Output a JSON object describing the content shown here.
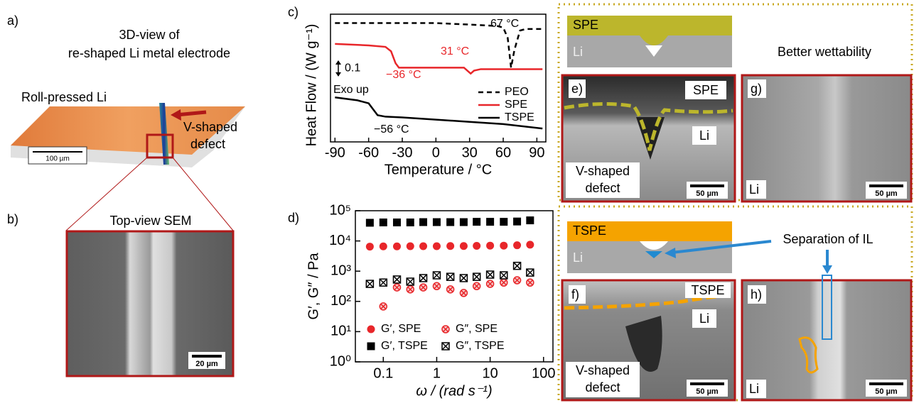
{
  "panel_a": {
    "label": "a)",
    "title_lines": [
      "3D-view of",
      "re-shaped Li metal electrode"
    ],
    "roll_label": "Roll-pressed Li",
    "defect_lines": [
      "V-shaped",
      "defect"
    ],
    "scale_bar": "100 µm"
  },
  "panel_b": {
    "label": "b)",
    "title": "Top-view SEM",
    "scale_bar": "20 µm"
  },
  "schematic_top": {
    "layer": "SPE",
    "substrate": "Li",
    "caption": "Better wettability"
  },
  "panel_e": {
    "label": "e)",
    "material": "SPE",
    "substrate": "Li",
    "defect_lines": [
      "V-shaped",
      "defect"
    ],
    "scale_bar": "50 µm"
  },
  "panel_g": {
    "label": "g)",
    "substrate": "Li",
    "scale_bar": "50 µm"
  },
  "schematic_bottom": {
    "layer": "TSPE",
    "substrate": "Li",
    "caption": "Separation of IL"
  },
  "panel_f": {
    "label": "f)",
    "material": "TSPE",
    "substrate": "Li",
    "defect_lines": [
      "V-shaped",
      "defect"
    ],
    "scale_bar": "50 µm"
  },
  "panel_h": {
    "label": "h)",
    "substrate": "Li",
    "scale_bar": "50 µm"
  },
  "chart_data": [
    {
      "label": "c)",
      "type": "line",
      "ylabel": "Heat Flow / (W g⁻¹)",
      "xlabel": "Temperature / °C",
      "xlim": [
        -94,
        98
      ],
      "xticks": [
        -90,
        -60,
        -30,
        0,
        30,
        60,
        90
      ],
      "ylim": [
        0,
        0.86
      ],
      "scale_bar": 0.1,
      "exo_label": "Exo up",
      "annotations": [
        "67 °C",
        "31 °C",
        "−36 °C",
        "−56 °C"
      ],
      "series": [
        {
          "name": "PEO",
          "color": "#000000",
          "linestyle": "dashed",
          "x": [
            -90,
            -60,
            -30,
            0,
            30,
            55,
            60,
            64,
            67,
            70,
            75,
            80,
            95
          ],
          "values": [
            0.8,
            0.8,
            0.8,
            0.8,
            0.79,
            0.78,
            0.77,
            0.7,
            0.5,
            0.62,
            0.75,
            0.76,
            0.76
          ]
        },
        {
          "name": "SPE",
          "color": "#e8262a",
          "linestyle": "solid",
          "x": [
            -90,
            -60,
            -45,
            -40,
            -36,
            -33,
            -20,
            0,
            25,
            28,
            31,
            34,
            40,
            60,
            95
          ],
          "values": [
            0.66,
            0.65,
            0.64,
            0.61,
            0.53,
            0.5,
            0.5,
            0.5,
            0.5,
            0.48,
            0.46,
            0.48,
            0.49,
            0.49,
            0.49
          ]
        },
        {
          "name": "TSPE",
          "color": "#000000",
          "linestyle": "solid",
          "x": [
            -90,
            -70,
            -60,
            -56,
            -52,
            -45,
            -30,
            0,
            30,
            60,
            95
          ],
          "values": [
            0.3,
            0.28,
            0.26,
            0.22,
            0.18,
            0.17,
            0.165,
            0.15,
            0.135,
            0.12,
            0.09
          ]
        }
      ]
    },
    {
      "label": "d)",
      "type": "scatter",
      "log_x": true,
      "log_y": true,
      "xlabel": "ω / (rad s⁻¹)",
      "ylabel": "G′, G″ / Pa",
      "xlim": [
        0.03,
        150
      ],
      "xticks": [
        0.1,
        1,
        10,
        100
      ],
      "ylim": [
        1,
        100000
      ],
      "yticks": [
        {
          "value": 1,
          "label": "10⁰"
        },
        {
          "value": 10,
          "label": "10¹"
        },
        {
          "value": 100,
          "label": "10²"
        },
        {
          "value": 1000,
          "label": "10³"
        },
        {
          "value": 10000,
          "label": "10⁴"
        },
        {
          "value": 100000,
          "label": "10⁵"
        }
      ],
      "x": [
        0.056,
        0.1,
        0.18,
        0.32,
        0.56,
        1,
        1.8,
        3.2,
        5.6,
        10,
        18,
        32,
        56
      ],
      "series": [
        {
          "name": "G′, SPE",
          "color": "#e8262a",
          "marker": "circle",
          "values": [
            6500,
            6600,
            6600,
            6700,
            6700,
            6700,
            6800,
            6800,
            6900,
            7000,
            7000,
            7200,
            7500
          ]
        },
        {
          "name": "G″, SPE",
          "color": "#e8262a",
          "marker": "circle-cross",
          "values": [
            380,
            68,
            290,
            250,
            290,
            320,
            250,
            190,
            320,
            380,
            420,
            500,
            420
          ]
        },
        {
          "name": "G′, TSPE",
          "color": "#000000",
          "marker": "square",
          "values": [
            40000,
            41000,
            41000,
            41000,
            42000,
            42000,
            42000,
            42000,
            43000,
            43000,
            43000,
            44000,
            48000
          ]
        },
        {
          "name": "G″, TSPE",
          "color": "#000000",
          "marker": "square-cross",
          "values": [
            380,
            420,
            530,
            450,
            590,
            730,
            650,
            590,
            650,
            770,
            730,
            1500,
            900
          ]
        }
      ]
    }
  ]
}
